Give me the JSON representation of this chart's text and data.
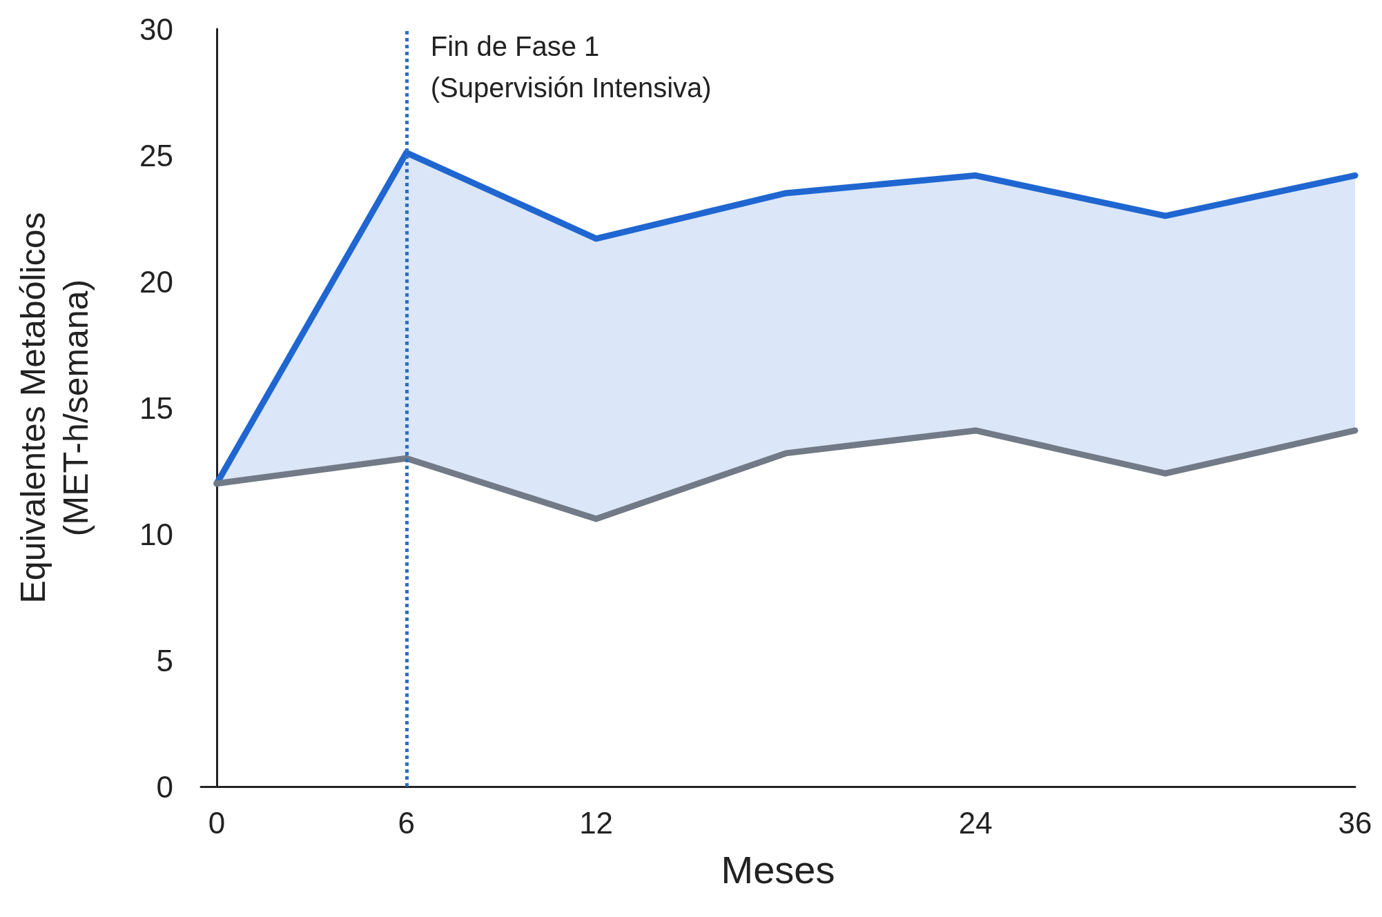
{
  "chart_data": {
    "type": "line",
    "xlabel": "Meses",
    "ylabel": "Equivalentes Metabólicos\n(MET-h/semana)",
    "x": [
      0,
      6,
      12,
      18,
      24,
      30,
      36
    ],
    "series": [
      {
        "color": "#1f66d1",
        "values": [
          12,
          25.1,
          21.7,
          23.5,
          24.2,
          22.6,
          24.2
        ],
        "lower": [
          12,
          13,
          10.6,
          13.2,
          14.1,
          12.4,
          14.1
        ],
        "upper": [
          12,
          25.1,
          21.7,
          23.5,
          24.2,
          22.6,
          24.2
        ]
      },
      {
        "color": "#717a86",
        "values": [
          12,
          13,
          10.6,
          13.2,
          14.1,
          12.4,
          14.1
        ]
      }
    ],
    "xlim": [
      -0.5,
      36
    ],
    "xticks": [
      0,
      6,
      12,
      24,
      36
    ],
    "ylim": [
      0,
      30
    ],
    "yticks": [
      0,
      5,
      10,
      15,
      20,
      25,
      30
    ],
    "grid": false,
    "marker": "none",
    "line_style": "solid",
    "ref_lines": [
      {
        "axis": "x",
        "value": 6,
        "label": "Fin de Fase 1\n(Supervisión Intensiva)",
        "color": "#2a6fc9",
        "line_style": "dotted"
      }
    ]
  }
}
